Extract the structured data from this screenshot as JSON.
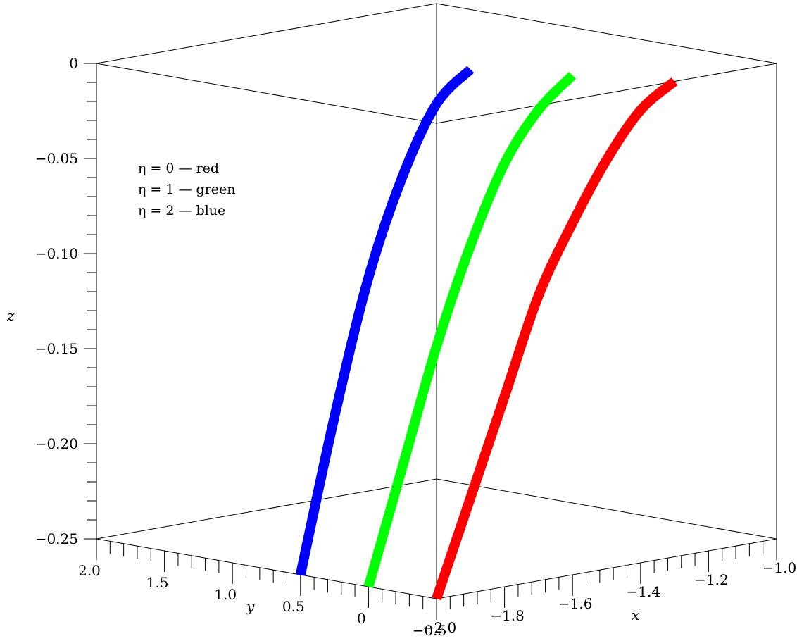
{
  "chart_data": {
    "type": "line",
    "projection": "3d",
    "title": "",
    "xlabel": "x",
    "ylabel": "y",
    "zlabel": "z",
    "xlim": [
      -2.0,
      -1.0
    ],
    "ylim": [
      -0.5,
      2.0
    ],
    "zlim": [
      -0.25,
      0.0
    ],
    "x_ticks": [
      "−2.0",
      "−1.8",
      "−1.6",
      "−1.4",
      "−1.2",
      "−1.0"
    ],
    "y_ticks": [
      "−0.5",
      "0",
      "0.5",
      "1.0",
      "1.5",
      "2.0"
    ],
    "z_ticks": [
      "−0.25",
      "−0.20",
      "−0.15",
      "−0.10",
      "−0.05",
      "0"
    ],
    "legend": {
      "placement": "top-left",
      "entries": [
        "η = 0 — red",
        "η = 1 — green",
        "η = 2 — blue"
      ]
    },
    "series": [
      {
        "color": "#ff0000",
        "points": [
          [
            -2.0,
            -0.5,
            -0.25
          ],
          [
            -1.9,
            -0.5,
            -0.2
          ],
          [
            -1.8,
            -0.5,
            -0.15
          ],
          [
            -1.7,
            -0.5,
            -0.1
          ],
          [
            -1.6,
            -0.5,
            -0.065
          ],
          [
            -1.5,
            -0.5,
            -0.035
          ],
          [
            -1.4,
            -0.5,
            -0.012
          ],
          [
            -1.3,
            -0.5,
            0.0
          ]
        ]
      },
      {
        "color": "#00ff00",
        "points": [
          [
            -2.0,
            0.0,
            -0.25
          ],
          [
            -1.9,
            0.0,
            -0.19
          ],
          [
            -1.8,
            0.0,
            -0.13
          ],
          [
            -1.7,
            0.0,
            -0.08
          ],
          [
            -1.6,
            0.0,
            -0.04
          ],
          [
            -1.5,
            0.0,
            -0.015
          ],
          [
            -1.4,
            0.0,
            0.0
          ]
        ]
      },
      {
        "color": "#0000ff",
        "points": [
          [
            -2.0,
            0.5,
            -0.25
          ],
          [
            -1.9,
            0.5,
            -0.17
          ],
          [
            -1.8,
            0.5,
            -0.1
          ],
          [
            -1.7,
            0.5,
            -0.05
          ],
          [
            -1.6,
            0.5,
            -0.015
          ],
          [
            -1.5,
            0.5,
            0.0
          ]
        ]
      }
    ]
  }
}
